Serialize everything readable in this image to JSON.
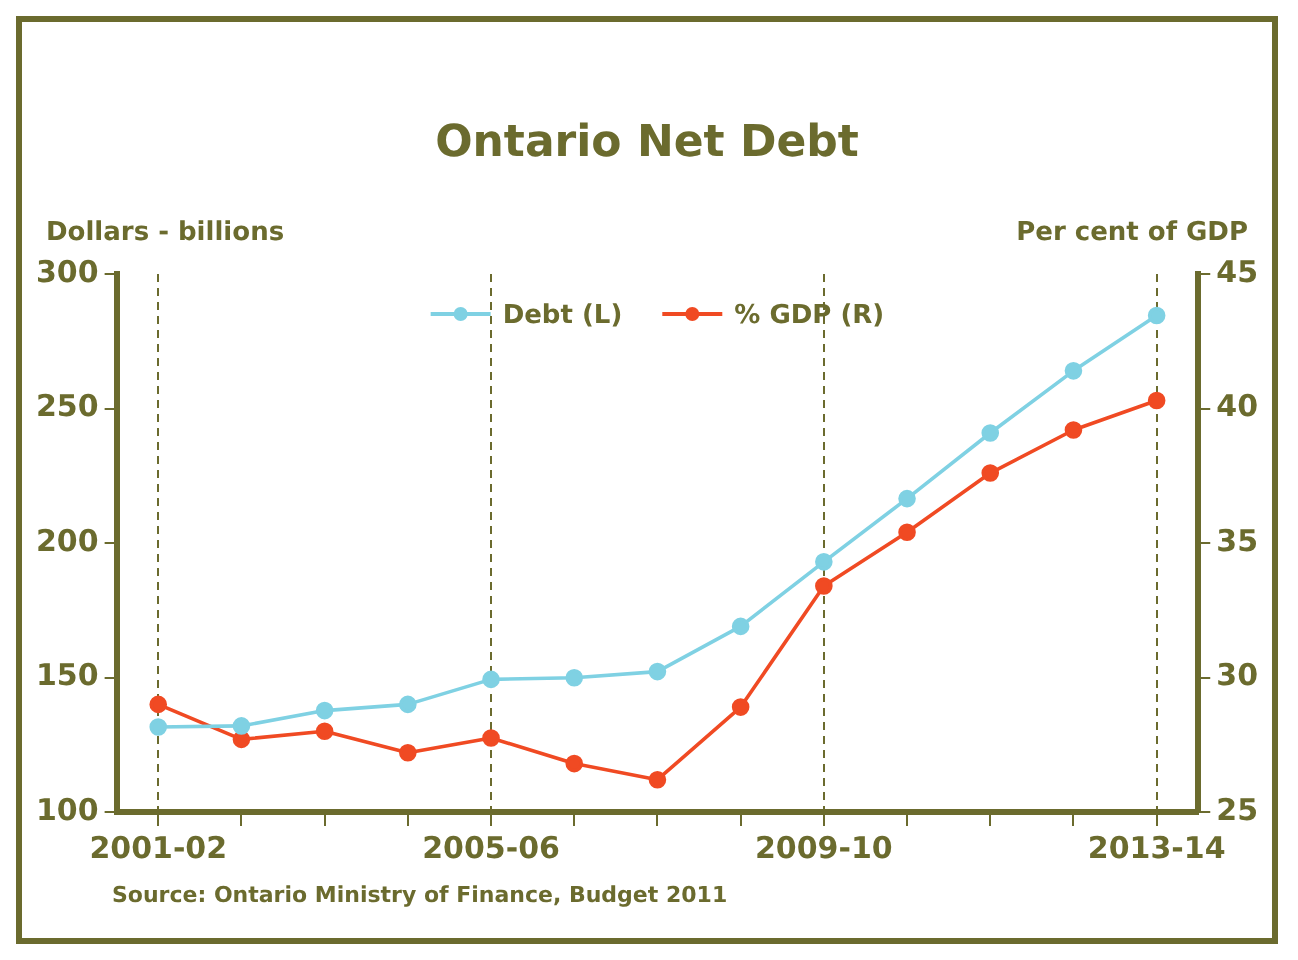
{
  "chart_data": {
    "type": "line",
    "title": "Ontario Net Debt",
    "ylabel": "Dollars - billions",
    "y2label": "Per cent of GDP",
    "categories": [
      "2001-02",
      null,
      null,
      null,
      "2005-06",
      null,
      null,
      null,
      "2009-10",
      null,
      null,
      null,
      "2013-14"
    ],
    "series": [
      {
        "name": "Debt (L)",
        "color": "#7fd1e3",
        "values": [
          131.6,
          132,
          137.7,
          140,
          149.3,
          149.9,
          152.2,
          169,
          193,
          216.5,
          240.9,
          264,
          284.6
        ]
      },
      {
        "name": "% GDP (R)",
        "color": "#f04a23",
        "axis": "y2",
        "values": [
          29.0,
          27.7,
          28.0,
          27.2,
          27.75,
          26.8,
          26.2,
          28.9,
          33.4,
          35.4,
          37.6,
          39.2,
          40.3
        ]
      }
    ],
    "ylim": [
      100,
      300
    ],
    "yticks": [
      100,
      150,
      200,
      250,
      300
    ],
    "y2lim": [
      25,
      45
    ],
    "y2ticks": [
      25,
      30,
      35,
      40,
      45
    ],
    "grid": "x",
    "legend": "top",
    "marker": "circle",
    "line_style": "solid",
    "annotations": [
      "Source: Ontario Ministry of Finance, Budget 2011"
    ]
  }
}
